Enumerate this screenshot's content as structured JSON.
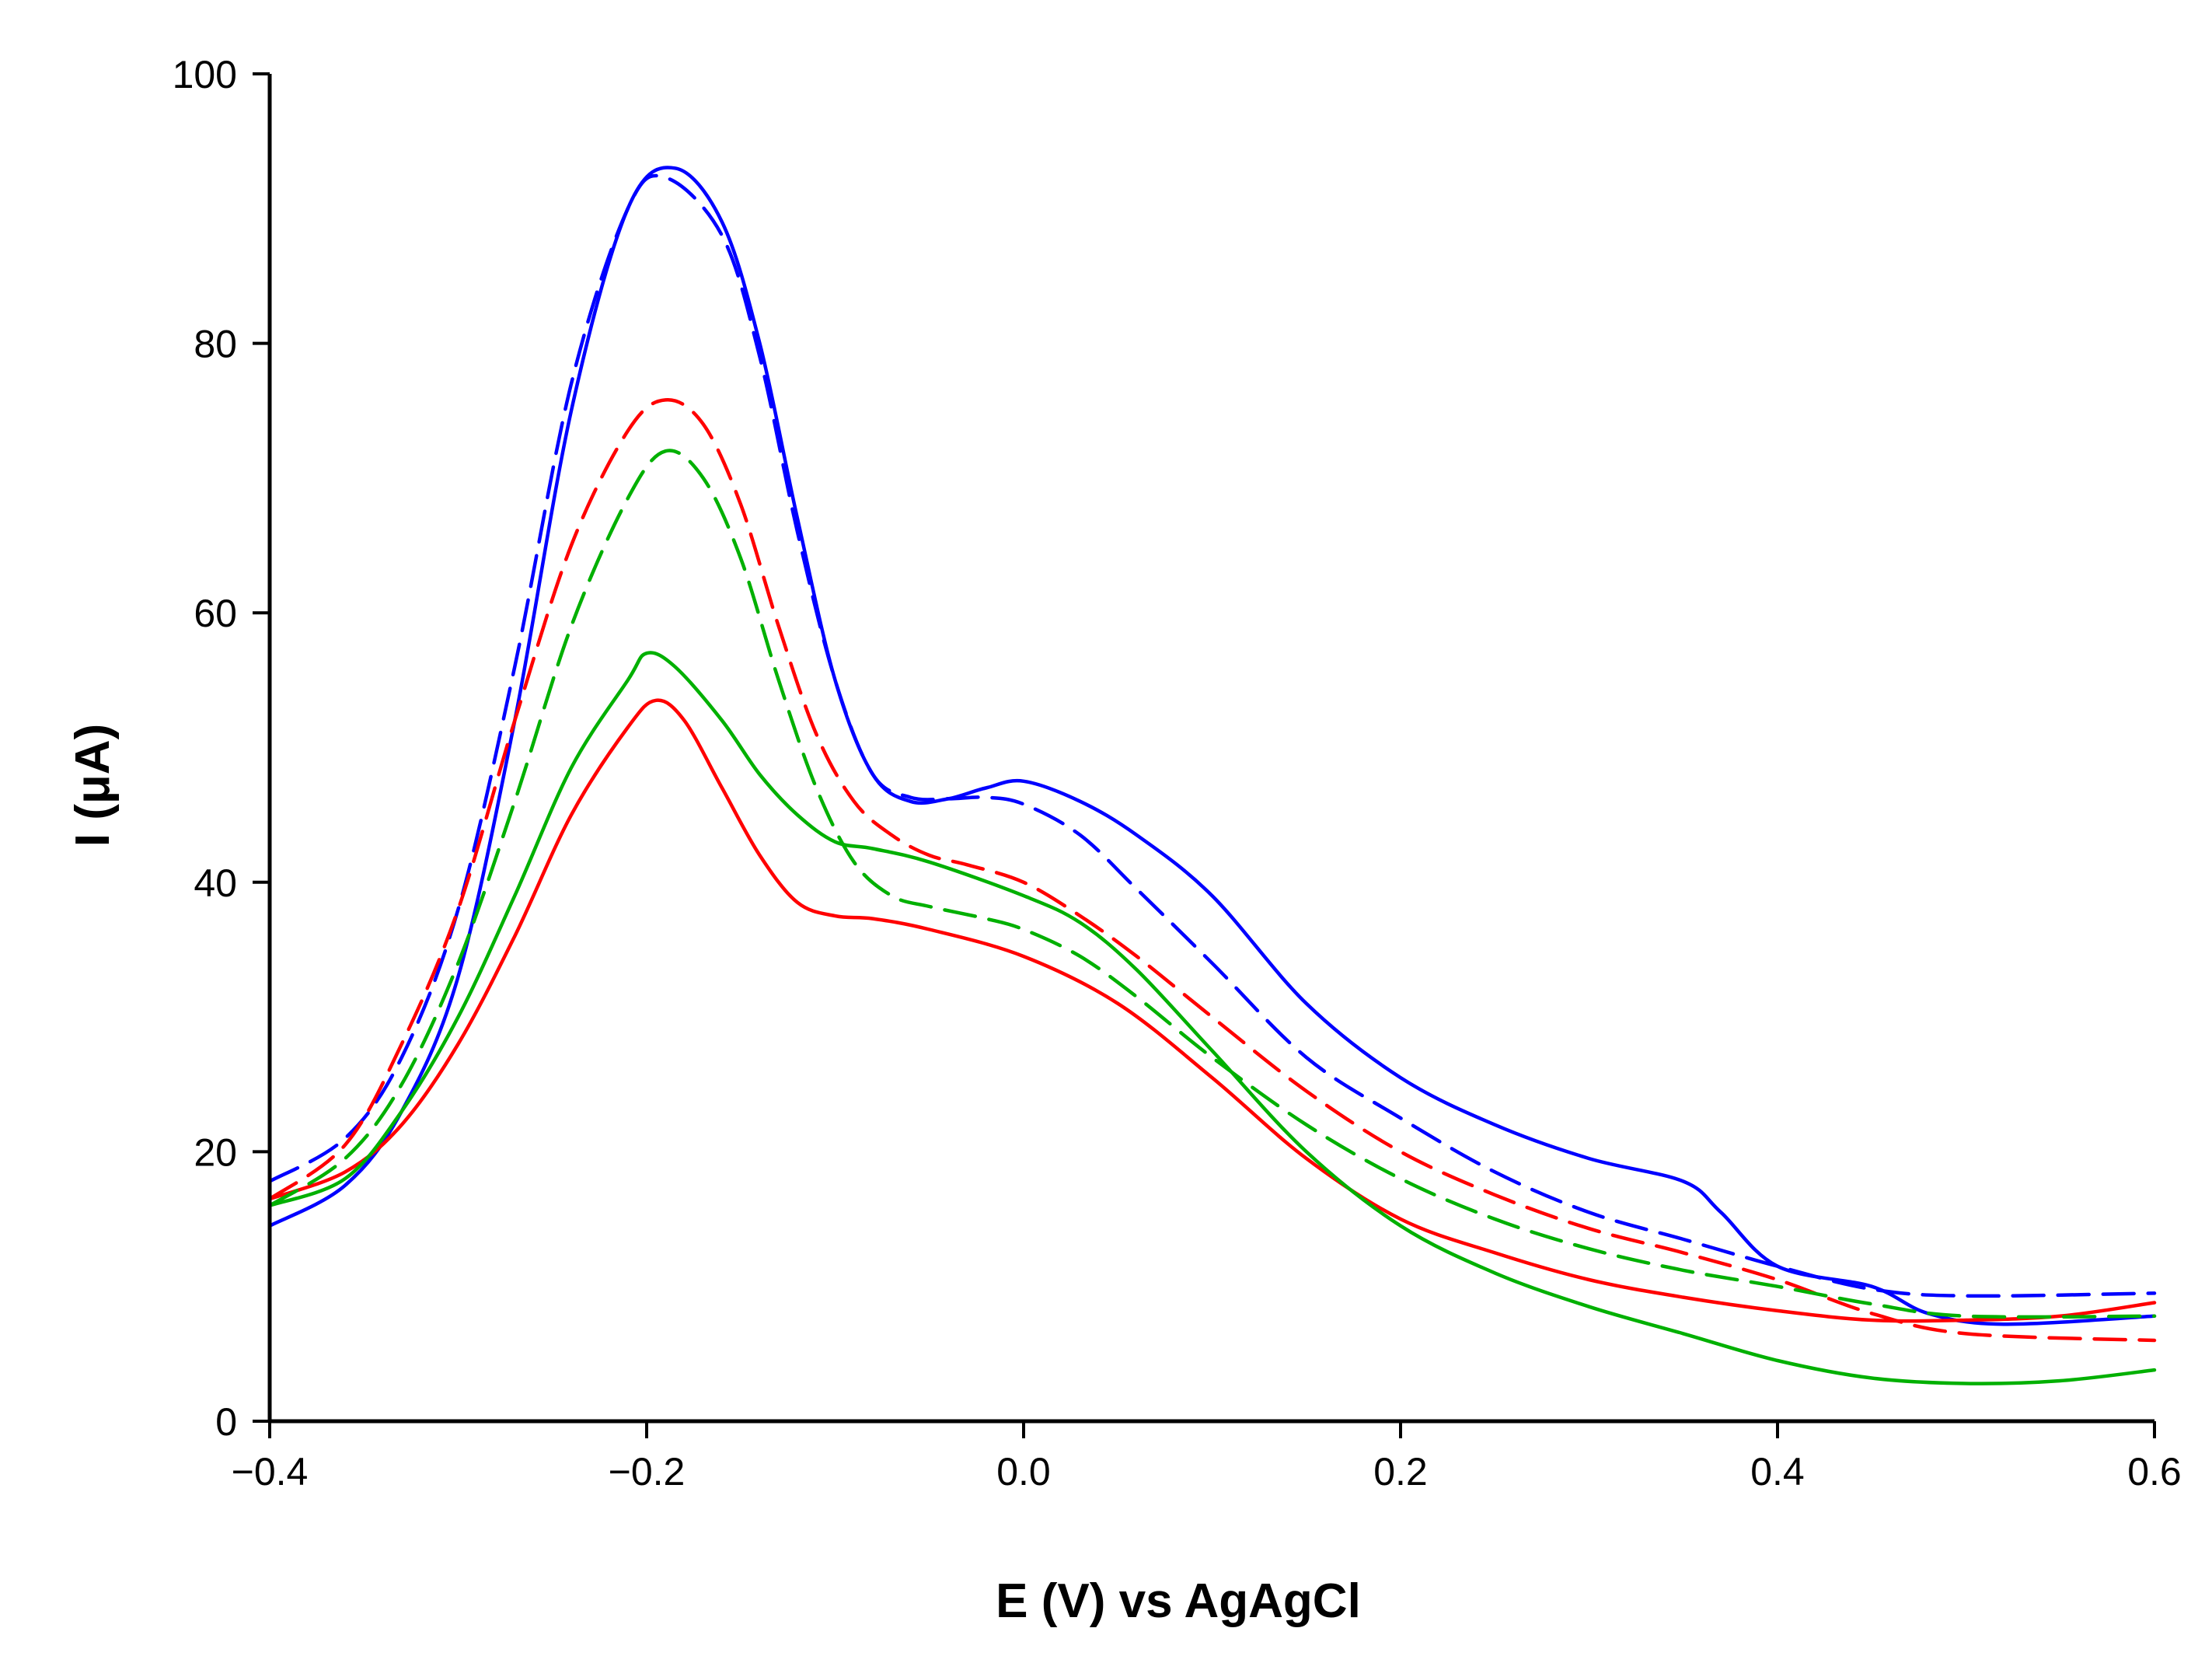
{
  "chart_data": {
    "type": "line",
    "title": "",
    "xlabel": "E (V) vs AgAgCl",
    "ylabel": "I (μA)",
    "xlim": [
      -0.4,
      0.6
    ],
    "ylim": [
      0,
      100
    ],
    "xticks": [
      -0.4,
      -0.2,
      0.0,
      0.2,
      0.4,
      0.6
    ],
    "xtick_labels": [
      "−0.4",
      "−0.2",
      "0.0",
      "0.2",
      "0.4",
      "0.6"
    ],
    "yticks": [
      0,
      20,
      40,
      60,
      80,
      100
    ],
    "ytick_labels": [
      "0",
      "20",
      "40",
      "60",
      "80",
      "100"
    ],
    "grid": false,
    "legend": null,
    "series": [
      {
        "color": "#0000ff",
        "dash": "solid",
        "points": [
          [
            -0.4,
            14.5
          ],
          [
            -0.36,
            17.5
          ],
          [
            -0.33,
            23
          ],
          [
            -0.3,
            33
          ],
          [
            -0.27,
            52
          ],
          [
            -0.24,
            75
          ],
          [
            -0.21,
            90
          ],
          [
            -0.185,
            93
          ],
          [
            -0.16,
            89
          ],
          [
            -0.14,
            80
          ],
          [
            -0.12,
            67
          ],
          [
            -0.1,
            55
          ],
          [
            -0.08,
            48
          ],
          [
            -0.06,
            46
          ],
          [
            -0.04,
            46.2
          ],
          [
            -0.02,
            47
          ],
          [
            0.0,
            47.5
          ],
          [
            0.03,
            46
          ],
          [
            0.06,
            43.5
          ],
          [
            0.1,
            39
          ],
          [
            0.15,
            31
          ],
          [
            0.2,
            25.5
          ],
          [
            0.25,
            22
          ],
          [
            0.3,
            19.5
          ],
          [
            0.35,
            17.8
          ],
          [
            0.37,
            15.5
          ],
          [
            0.4,
            11.5
          ],
          [
            0.45,
            10
          ],
          [
            0.48,
            8
          ],
          [
            0.52,
            7.2
          ],
          [
            0.6,
            7.8
          ]
        ]
      },
      {
        "color": "#0000ff",
        "dash": "dashed",
        "points": [
          [
            -0.4,
            17.8
          ],
          [
            -0.36,
            21
          ],
          [
            -0.33,
            27
          ],
          [
            -0.3,
            38
          ],
          [
            -0.27,
            56
          ],
          [
            -0.24,
            77
          ],
          [
            -0.21,
            90
          ],
          [
            -0.19,
            92.3
          ],
          [
            -0.16,
            88
          ],
          [
            -0.14,
            79
          ],
          [
            -0.12,
            66
          ],
          [
            -0.1,
            55
          ],
          [
            -0.08,
            48
          ],
          [
            -0.06,
            46.3
          ],
          [
            -0.04,
            46.2
          ],
          [
            -0.02,
            46.3
          ],
          [
            0.0,
            45.8
          ],
          [
            0.03,
            43.5
          ],
          [
            0.06,
            39.5
          ],
          [
            0.1,
            34
          ],
          [
            0.15,
            27
          ],
          [
            0.2,
            22.5
          ],
          [
            0.25,
            18.5
          ],
          [
            0.3,
            15.5
          ],
          [
            0.35,
            13.5
          ],
          [
            0.4,
            11.5
          ],
          [
            0.45,
            9.8
          ],
          [
            0.5,
            9.3
          ],
          [
            0.6,
            9.5
          ]
        ]
      },
      {
        "color": "#ff0000",
        "dash": "solid",
        "points": [
          [
            -0.4,
            16.5
          ],
          [
            -0.36,
            18.5
          ],
          [
            -0.33,
            22
          ],
          [
            -0.3,
            28
          ],
          [
            -0.27,
            36
          ],
          [
            -0.24,
            45
          ],
          [
            -0.21,
            51.5
          ],
          [
            -0.195,
            53.5
          ],
          [
            -0.18,
            52
          ],
          [
            -0.16,
            47
          ],
          [
            -0.14,
            42
          ],
          [
            -0.12,
            38.5
          ],
          [
            -0.1,
            37.5
          ],
          [
            -0.08,
            37.3
          ],
          [
            -0.05,
            36.5
          ],
          [
            0.0,
            34.5
          ],
          [
            0.05,
            31
          ],
          [
            0.1,
            25.5
          ],
          [
            0.15,
            19.5
          ],
          [
            0.2,
            15
          ],
          [
            0.25,
            12.5
          ],
          [
            0.3,
            10.5
          ],
          [
            0.35,
            9.2
          ],
          [
            0.4,
            8.2
          ],
          [
            0.45,
            7.5
          ],
          [
            0.5,
            7.5
          ],
          [
            0.55,
            7.8
          ],
          [
            0.6,
            8.8
          ]
        ]
      },
      {
        "color": "#ff0000",
        "dash": "dashed",
        "points": [
          [
            -0.4,
            16.5
          ],
          [
            -0.36,
            20.5
          ],
          [
            -0.33,
            28
          ],
          [
            -0.3,
            38
          ],
          [
            -0.27,
            52
          ],
          [
            -0.24,
            65
          ],
          [
            -0.21,
            73.5
          ],
          [
            -0.19,
            75.8
          ],
          [
            -0.17,
            74
          ],
          [
            -0.15,
            68
          ],
          [
            -0.13,
            59
          ],
          [
            -0.11,
            51
          ],
          [
            -0.09,
            46
          ],
          [
            -0.07,
            43.5
          ],
          [
            -0.05,
            42
          ],
          [
            -0.03,
            41.3
          ],
          [
            0.0,
            40
          ],
          [
            0.03,
            37.5
          ],
          [
            0.06,
            34.5
          ],
          [
            0.1,
            30
          ],
          [
            0.15,
            24.5
          ],
          [
            0.2,
            20
          ],
          [
            0.25,
            16.8
          ],
          [
            0.3,
            14.3
          ],
          [
            0.35,
            12.5
          ],
          [
            0.4,
            10.5
          ],
          [
            0.45,
            8
          ],
          [
            0.5,
            6.5
          ],
          [
            0.6,
            6
          ]
        ]
      },
      {
        "color": "#00b000",
        "dash": "solid",
        "points": [
          [
            -0.4,
            16
          ],
          [
            -0.36,
            18
          ],
          [
            -0.33,
            23
          ],
          [
            -0.3,
            30
          ],
          [
            -0.27,
            39
          ],
          [
            -0.24,
            48.5
          ],
          [
            -0.21,
            55
          ],
          [
            -0.2,
            57
          ],
          [
            -0.185,
            56
          ],
          [
            -0.16,
            52
          ],
          [
            -0.14,
            48
          ],
          [
            -0.12,
            45
          ],
          [
            -0.1,
            43
          ],
          [
            -0.08,
            42.5
          ],
          [
            -0.05,
            41.5
          ],
          [
            0.0,
            39
          ],
          [
            0.03,
            37
          ],
          [
            0.06,
            33.5
          ],
          [
            0.1,
            27.5
          ],
          [
            0.15,
            20
          ],
          [
            0.2,
            14.5
          ],
          [
            0.25,
            11
          ],
          [
            0.3,
            8.5
          ],
          [
            0.35,
            6.5
          ],
          [
            0.4,
            4.5
          ],
          [
            0.45,
            3.2
          ],
          [
            0.5,
            2.8
          ],
          [
            0.55,
            3
          ],
          [
            0.6,
            3.8
          ]
        ]
      },
      {
        "color": "#00b000",
        "dash": "dashed",
        "points": [
          [
            -0.4,
            16
          ],
          [
            -0.36,
            19.5
          ],
          [
            -0.33,
            25
          ],
          [
            -0.3,
            34
          ],
          [
            -0.27,
            46
          ],
          [
            -0.24,
            59
          ],
          [
            -0.21,
            68.5
          ],
          [
            -0.19,
            72
          ],
          [
            -0.17,
            70
          ],
          [
            -0.15,
            64
          ],
          [
            -0.13,
            55
          ],
          [
            -0.11,
            47
          ],
          [
            -0.09,
            41.5
          ],
          [
            -0.07,
            39
          ],
          [
            -0.05,
            38.2
          ],
          [
            -0.02,
            37.3
          ],
          [
            0.0,
            36.5
          ],
          [
            0.03,
            34.5
          ],
          [
            0.06,
            31.5
          ],
          [
            0.1,
            27
          ],
          [
            0.15,
            22
          ],
          [
            0.2,
            18
          ],
          [
            0.25,
            15
          ],
          [
            0.3,
            12.8
          ],
          [
            0.35,
            11.2
          ],
          [
            0.4,
            10
          ],
          [
            0.45,
            8.7
          ],
          [
            0.5,
            7.8
          ],
          [
            0.6,
            7.8
          ]
        ]
      }
    ]
  }
}
